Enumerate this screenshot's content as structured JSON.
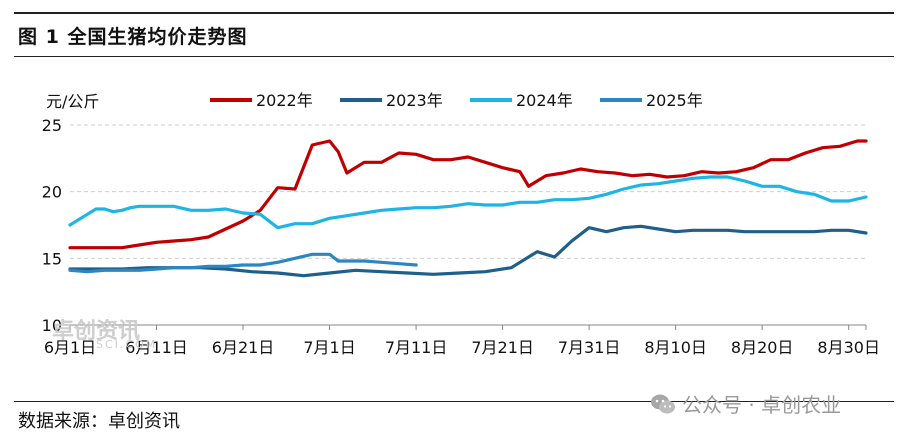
{
  "figure": {
    "title": "图 1  全国生猪均价走势图",
    "source": "数据来源：卓创资讯",
    "credit": "公众号 · 卓创农业",
    "watermark": "卓创资讯",
    "watermark_sub": "SCI.COM"
  },
  "chart_data": {
    "type": "line",
    "title": "",
    "ylabel": "元/公斤",
    "xlabel": "",
    "ylim": [
      10,
      25
    ],
    "yticks": [
      10,
      15,
      20,
      25
    ],
    "grid": "horizontal dashed",
    "legend_position": "top",
    "x_tick_labels": [
      "6月1日",
      "6月11日",
      "6月21日",
      "7月1日",
      "7月11日",
      "7月21日",
      "7月31日",
      "8月10日",
      "8月20日",
      "8月30日"
    ],
    "x_tick_days": [
      0,
      10,
      20,
      30,
      40,
      50,
      60,
      70,
      80,
      90
    ],
    "x_range_days": [
      0,
      92
    ],
    "series": [
      {
        "name": "2022年",
        "color": "#c00000",
        "x": [
          0,
          2,
          4,
          6,
          8,
          10,
          12,
          14,
          16,
          18,
          20,
          22,
          24,
          26,
          28,
          30,
          31,
          32,
          34,
          36,
          38,
          40,
          42,
          44,
          46,
          48,
          50,
          52,
          53,
          55,
          57,
          59,
          61,
          63,
          65,
          67,
          69,
          71,
          73,
          75,
          77,
          79,
          81,
          83,
          85,
          87,
          89,
          91,
          92
        ],
        "y": [
          15.8,
          15.8,
          15.8,
          15.8,
          16.0,
          16.2,
          16.3,
          16.4,
          16.6,
          17.2,
          17.8,
          18.6,
          20.3,
          20.2,
          23.5,
          23.8,
          23.0,
          21.4,
          22.2,
          22.2,
          22.9,
          22.8,
          22.4,
          22.4,
          22.6,
          22.2,
          21.8,
          21.5,
          20.4,
          21.2,
          21.4,
          21.7,
          21.5,
          21.4,
          21.2,
          21.3,
          21.1,
          21.2,
          21.5,
          21.4,
          21.5,
          21.8,
          22.4,
          22.4,
          22.9,
          23.3,
          23.4,
          23.8,
          23.8
        ]
      },
      {
        "name": "2023年",
        "color": "#1f5f8b",
        "x": [
          0,
          3,
          6,
          9,
          12,
          15,
          18,
          21,
          24,
          27,
          30,
          33,
          36,
          39,
          42,
          45,
          48,
          51,
          54,
          56,
          58,
          60,
          62,
          64,
          66,
          68,
          70,
          72,
          74,
          76,
          78,
          80,
          82,
          84,
          86,
          88,
          90,
          92
        ],
        "y": [
          14.2,
          14.2,
          14.2,
          14.3,
          14.3,
          14.3,
          14.2,
          14.0,
          13.9,
          13.7,
          13.9,
          14.1,
          14.0,
          13.9,
          13.8,
          13.9,
          14.0,
          14.3,
          15.5,
          15.1,
          16.3,
          17.3,
          17.0,
          17.3,
          17.4,
          17.2,
          17.0,
          17.1,
          17.1,
          17.1,
          17.0,
          17.0,
          17.0,
          17.0,
          17.0,
          17.1,
          17.1,
          16.9
        ]
      },
      {
        "name": "2024年",
        "color": "#1fb4e6",
        "x": [
          0,
          2,
          3,
          4,
          5,
          6,
          7,
          8,
          10,
          12,
          14,
          16,
          18,
          20,
          22,
          24,
          26,
          28,
          30,
          32,
          34,
          36,
          38,
          40,
          42,
          44,
          46,
          48,
          50,
          52,
          54,
          56,
          58,
          60,
          62,
          64,
          66,
          68,
          70,
          72,
          74,
          76,
          78,
          80,
          82,
          84,
          86,
          88,
          90,
          92
        ],
        "y": [
          17.5,
          18.3,
          18.7,
          18.7,
          18.5,
          18.6,
          18.8,
          18.9,
          18.9,
          18.9,
          18.6,
          18.6,
          18.7,
          18.4,
          18.3,
          17.3,
          17.6,
          17.6,
          18.0,
          18.2,
          18.4,
          18.6,
          18.7,
          18.8,
          18.8,
          18.9,
          19.1,
          19.0,
          19.0,
          19.2,
          19.2,
          19.4,
          19.4,
          19.5,
          19.8,
          20.2,
          20.5,
          20.6,
          20.8,
          21.0,
          21.1,
          21.1,
          20.8,
          20.4,
          20.4,
          20.0,
          19.8,
          19.3,
          19.3,
          19.6
        ]
      },
      {
        "name": "2025年",
        "color": "#2b87c2",
        "x": [
          0,
          2,
          4,
          6,
          8,
          10,
          12,
          14,
          16,
          18,
          20,
          22,
          24,
          26,
          28,
          30,
          31,
          32,
          34,
          36,
          38,
          40
        ],
        "y": [
          14.1,
          14.0,
          14.1,
          14.1,
          14.1,
          14.2,
          14.3,
          14.3,
          14.4,
          14.4,
          14.5,
          14.5,
          14.7,
          15.0,
          15.3,
          15.3,
          14.8,
          14.8,
          14.8,
          14.7,
          14.6,
          14.5
        ]
      }
    ]
  }
}
